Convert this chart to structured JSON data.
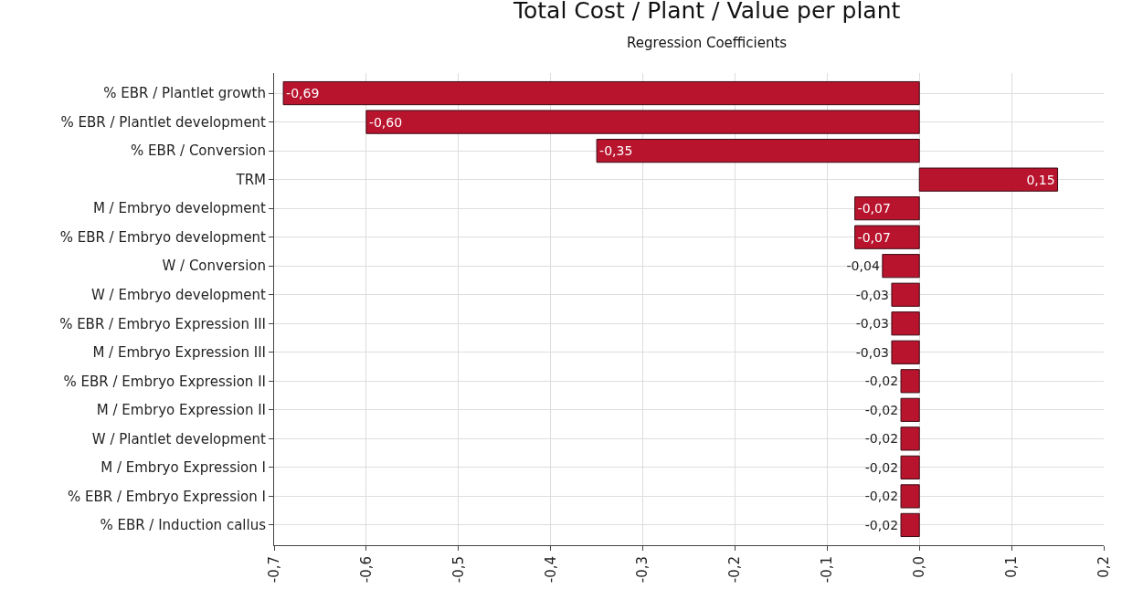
{
  "chart_data": {
    "type": "bar",
    "orientation": "horizontal",
    "title": "Total Cost / Plant / Value per plant",
    "subtitle": "Regression Coefficients",
    "categories": [
      "% EBR / Plantlet growth",
      "% EBR / Plantlet development",
      "% EBR / Conversion",
      "TRM",
      "M / Embryo development",
      "% EBR / Embryo development",
      "W / Conversion",
      "W / Embryo development",
      "% EBR / Embryo Expression III",
      "M / Embryo Expression III",
      "% EBR / Embryo Expression II",
      "M / Embryo Expression II",
      "W / Plantlet development",
      "M / Embryo Expression I",
      "% EBR / Embryo Expression I",
      "% EBR / Induction callus"
    ],
    "values": [
      -0.69,
      -0.6,
      -0.35,
      0.15,
      -0.07,
      -0.07,
      -0.04,
      -0.03,
      -0.03,
      -0.03,
      -0.02,
      -0.02,
      -0.02,
      -0.02,
      -0.02,
      -0.02
    ],
    "value_labels": [
      "-0,69",
      "-0,60",
      "-0,35",
      "0,15",
      "-0,07",
      "-0,07",
      "-0,04",
      "-0,03",
      "-0,03",
      "-0,03",
      "-0,02",
      "-0,02",
      "-0,02",
      "-0,02",
      "-0,02",
      "-0,02"
    ],
    "color": "#b8142e",
    "xlim": [
      -0.7,
      0.2
    ],
    "xticks": [
      {
        "value": -0.7,
        "label": "-0,7"
      },
      {
        "value": -0.6,
        "label": "-0,6"
      },
      {
        "value": -0.5,
        "label": "-0,5"
      },
      {
        "value": -0.4,
        "label": "-0,4"
      },
      {
        "value": -0.3,
        "label": "-0,3"
      },
      {
        "value": -0.2,
        "label": "-0,2"
      },
      {
        "value": -0.1,
        "label": "-0,1"
      },
      {
        "value": 0,
        "label": "0,0"
      },
      {
        "value": 0.1,
        "label": "0,1"
      },
      {
        "value": 0.2,
        "label": "0,2"
      }
    ],
    "grid": true
  }
}
